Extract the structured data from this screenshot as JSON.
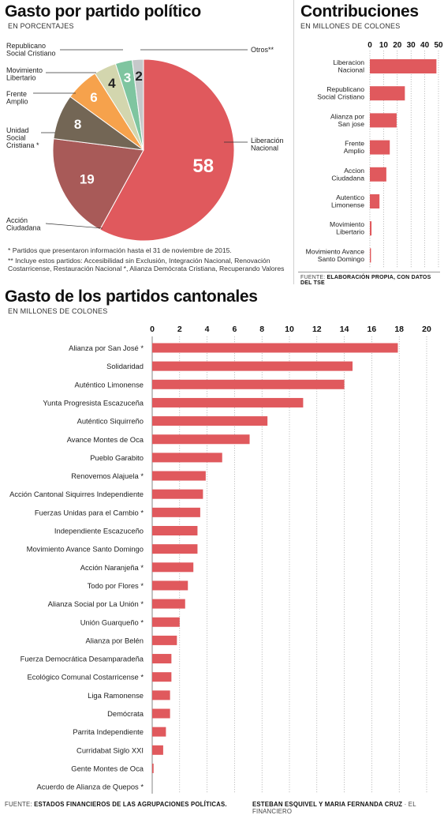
{
  "pie": {
    "title": "Gasto por partido político",
    "subtitle": "EN PORCENTAJES",
    "note1": "* Partidos que presentaron información hasta el 31 de noviembre de 2015.",
    "note2": "** Incluye estos partidos: Accesibilidad sin Exclusión, Integración Nacional, Renovación Costarricense, Restauración Nacional *, Alianza Demócrata Cristiana, Recuperando Valores"
  },
  "contrib": {
    "title": "Contribuciones",
    "subtitle": "EN MILLONES DE COLONES",
    "source_prefix": "FUENTE: ",
    "source": "ELABORACIÓN PROPIA, CON DATOS DEL TSE"
  },
  "cantonal": {
    "title": "Gasto de los partidos cantonales",
    "subtitle": "EN MILLONES DE COLONES"
  },
  "footer": {
    "source_prefix": "FUENTE: ",
    "source": "ESTADOS FINANCIEROS DE LAS AGRUPACIONES POLÍTICAS.",
    "authors": "ESTEBAN ESQUIVEL Y MARIA FERNANDA CRUZ",
    "outlet": " · EL FINANCIERO"
  },
  "chart_data": [
    {
      "type": "pie",
      "title": "Gasto por partido político",
      "unit": "EN PORCENTAJES",
      "slices": [
        {
          "label": "Liberación Nacional",
          "value": 58,
          "color": "#e0595d"
        },
        {
          "label": "Acción Ciudadana",
          "value": 19,
          "color": "#a85a58"
        },
        {
          "label": "Unidad Social Cristiana *",
          "value": 8,
          "color": "#736655"
        },
        {
          "label": "Frente Amplio",
          "value": 6,
          "color": "#f6a24c"
        },
        {
          "label": "Movimiento Libertario",
          "value": 4,
          "color": "#d3d6ae"
        },
        {
          "label": "Republicano Social Cristiano",
          "value": 3,
          "color": "#7fc5a0"
        },
        {
          "label": "Otros**",
          "value": 2,
          "color": "#c6c8ca"
        }
      ]
    },
    {
      "type": "bar",
      "title": "Contribuciones",
      "unit": "EN MILLONES DE COLONES",
      "xlim": [
        0,
        50
      ],
      "ticks": [
        0,
        10,
        20,
        30,
        40,
        50
      ],
      "categories": [
        "Liberacion Nacional",
        "Republicano Social Cristiano",
        "Alianza por San jose",
        "Frente Amplio",
        "Accion Ciudadana",
        "Autentico Limonense",
        "Movimiento Libertario",
        "Movimiento Avance Santo Domingo"
      ],
      "values": [
        48.5,
        25.5,
        19.5,
        14.5,
        12,
        7,
        1.2,
        0.8
      ],
      "color": "#e0595d"
    },
    {
      "type": "bar",
      "title": "Gasto de los partidos cantonales",
      "unit": "EN MILLONES DE COLONES",
      "xlim": [
        0,
        20
      ],
      "ticks": [
        0,
        2,
        4,
        6,
        8,
        10,
        12,
        14,
        16,
        18,
        20
      ],
      "categories": [
        "Alianza por San José *",
        "Solidaridad",
        "Auténtico Limonense",
        "Yunta Progresista Escazuceña",
        "Auténtico Siquirreño",
        "Avance Montes de Oca",
        "Pueblo Garabito",
        "Renovemos Alajuela *",
        "Acción Cantonal Siquirres Independiente",
        "Fuerzas Unidas para el Cambio *",
        "Independiente Escazuceño",
        "Movimiento Avance Santo Domingo",
        "Acción Naranjeña *",
        "Todo por Flores *",
        "Alianza Social por La Unión *",
        "Unión Guarqueño *",
        "Alianza por Belén",
        "Fuerza Democrática Desamparadeña",
        "Ecológico Comunal Costarricense *",
        "Liga Ramonense",
        "Demócrata",
        "Parrita Independiente",
        "Curridabat Siglo XXI",
        "Gente Montes de Oca",
        "Acuerdo de Alianza de Quepos *"
      ],
      "values": [
        17.9,
        14.6,
        14.0,
        11.0,
        8.4,
        7.1,
        5.1,
        3.9,
        3.7,
        3.5,
        3.3,
        3.3,
        3.0,
        2.6,
        2.4,
        2.0,
        1.8,
        1.4,
        1.4,
        1.3,
        1.3,
        1.0,
        0.8,
        0.1,
        0
      ],
      "color": "#e0595d"
    }
  ]
}
